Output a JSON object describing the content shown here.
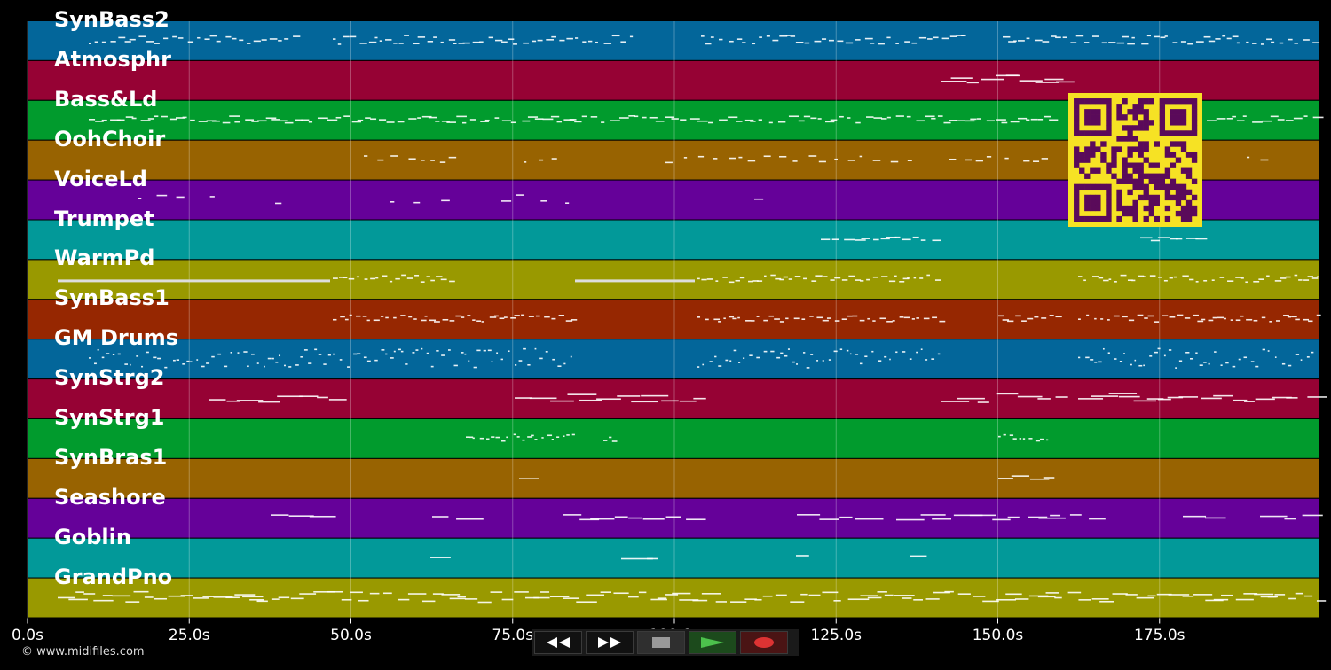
{
  "tracks": [
    {
      "name": "SynBass2",
      "color": "#03669a"
    },
    {
      "name": "Atmosphr",
      "color": "#960234"
    },
    {
      "name": "Bass&Ld",
      "color": "#019b2d"
    },
    {
      "name": "OohChoir",
      "color": "#986301"
    },
    {
      "name": "VoiceLd",
      "color": "#650199"
    },
    {
      "name": "Trumpet",
      "color": "#029999"
    },
    {
      "name": "WarmPd",
      "color": "#999900"
    },
    {
      "name": "SynBass1",
      "color": "#962701"
    },
    {
      "name": "GM Drums",
      "color": "#03669a"
    },
    {
      "name": "SynStrg2",
      "color": "#960234"
    },
    {
      "name": "SynStrg1",
      "color": "#019b2d"
    },
    {
      "name": "SynBras1",
      "color": "#986301"
    },
    {
      "name": "Seashore",
      "color": "#650199"
    },
    {
      "name": "Goblin",
      "color": "#029999"
    },
    {
      "name": "GrandPno",
      "color": "#999900"
    }
  ],
  "ticks": [
    "0.0s",
    "25.0s",
    "50.0s",
    "75.0s",
    "100.0s",
    "125.0s",
    "150.0s",
    "175.0s"
  ],
  "timeline": {
    "start_s": 0,
    "end_s": 200
  },
  "copyright": "© www.midifiles.com",
  "transport": {
    "rewind_icon": "double-left-arrow-icon",
    "forward_icon": "double-right-arrow-icon",
    "stop_icon": "stop-square-icon",
    "play_icon": "play-triangle-icon",
    "record_icon": "record-circle-icon",
    "play_color": "#4cc14c",
    "record_color": "#d33"
  },
  "qr_colors": {
    "bg": "#f6e224",
    "fg": "#5a0a5a"
  }
}
